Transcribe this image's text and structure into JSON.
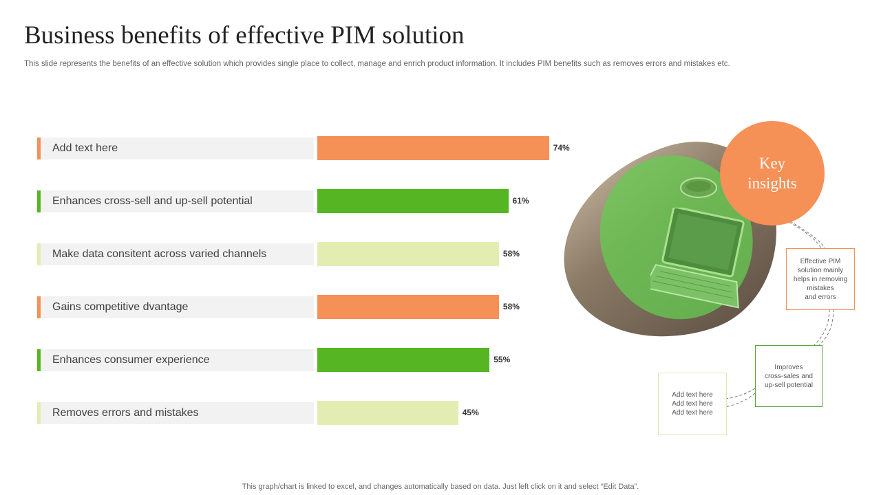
{
  "header": {
    "title": "Business benefits of effective PIM solution",
    "subtitle": "This slide represents the benefits of an effective solution which provides single place to collect, manage and enrich product information. It includes PIM benefits such as removes errors and mistakes etc."
  },
  "footer": {
    "note": "This graph/chart is linked to excel, and changes automatically based on data. Just left click on it and select “Edit Data”."
  },
  "chart_data": {
    "type": "bar",
    "orientation": "horizontal",
    "categories": [
      "Add text here",
      "Enhances cross-sell and up-sell potential",
      "Make data consitent across varied channels",
      "Gains competitive dvantage",
      "Enhances consumer experience",
      "Removes errors and mistakes"
    ],
    "values": [
      74,
      61,
      58,
      58,
      55,
      45
    ],
    "value_labels": [
      "74%",
      "61%",
      "58%",
      "58%",
      "55%",
      "45%"
    ],
    "bar_colors": [
      "#f59056",
      "#55b523",
      "#e4edb1",
      "#f59056",
      "#55b523",
      "#e4edb1"
    ],
    "value_unit": "%",
    "xlim": [
      0,
      100
    ],
    "title": "",
    "xlabel": "",
    "ylabel": ""
  },
  "insights": {
    "heading": "Key insights",
    "notes": [
      {
        "text": "Effective PIM\nsolution mainly\nhelps in removing\nmistakes\nand errors",
        "color": "#f59056"
      },
      {
        "text": "Improves\ncross-sales and\nup-sell potential",
        "color": "#57a83a"
      },
      {
        "text": "Add text here\nAdd text here\nAdd text here",
        "color": "#dfe8b6"
      }
    ]
  }
}
